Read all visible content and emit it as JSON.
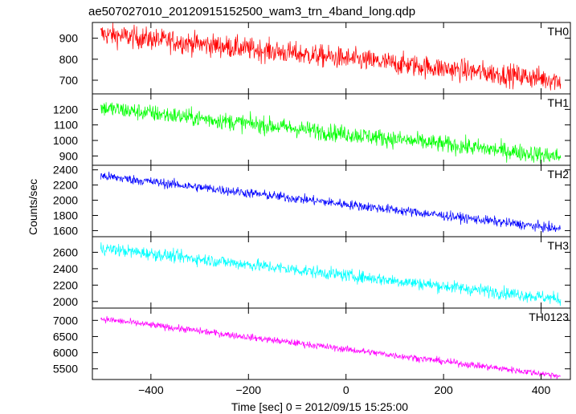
{
  "chart_data": {
    "type": "line",
    "title": "ae507027010_20120915152500_wam3_trn_4band_long.qdp",
    "xlabel": "Time [sec] 0 = 2012/09/15 15:25:00",
    "ylabel": "Counts/sec",
    "xlim": [
      -520,
      460
    ],
    "xticks": [
      -400,
      -200,
      0,
      200,
      400
    ],
    "x_start": -503,
    "x_end": 440,
    "grid": false,
    "panels": [
      {
        "name": "TH0",
        "color": "#ff0000",
        "ylim": [
          635,
          975
        ],
        "yticks": [
          700,
          800,
          900
        ],
        "start_value": 920,
        "end_value": 700,
        "noise": 38
      },
      {
        "name": "TH1",
        "color": "#00ff00",
        "ylim": [
          840,
          1300
        ],
        "yticks": [
          900,
          1000,
          1100,
          1200
        ],
        "start_value": 1210,
        "end_value": 895,
        "noise": 40
      },
      {
        "name": "TH2",
        "color": "#0000ff",
        "ylim": [
          1520,
          2460
        ],
        "yticks": [
          1600,
          1800,
          2000,
          2200,
          2400
        ],
        "start_value": 2320,
        "end_value": 1620,
        "noise": 45
      },
      {
        "name": "TH3",
        "color": "#00ffff",
        "ylim": [
          1920,
          2790
        ],
        "yticks": [
          2000,
          2200,
          2400,
          2600
        ],
        "start_value": 2650,
        "end_value": 2030,
        "noise": 55
      },
      {
        "name": "TH0123",
        "color": "#ff00ff",
        "ylim": [
          5170,
          7380
        ],
        "yticks": [
          5500,
          6000,
          6500,
          7000
        ],
        "start_value": 7050,
        "end_value": 5280,
        "noise": 75
      }
    ]
  }
}
